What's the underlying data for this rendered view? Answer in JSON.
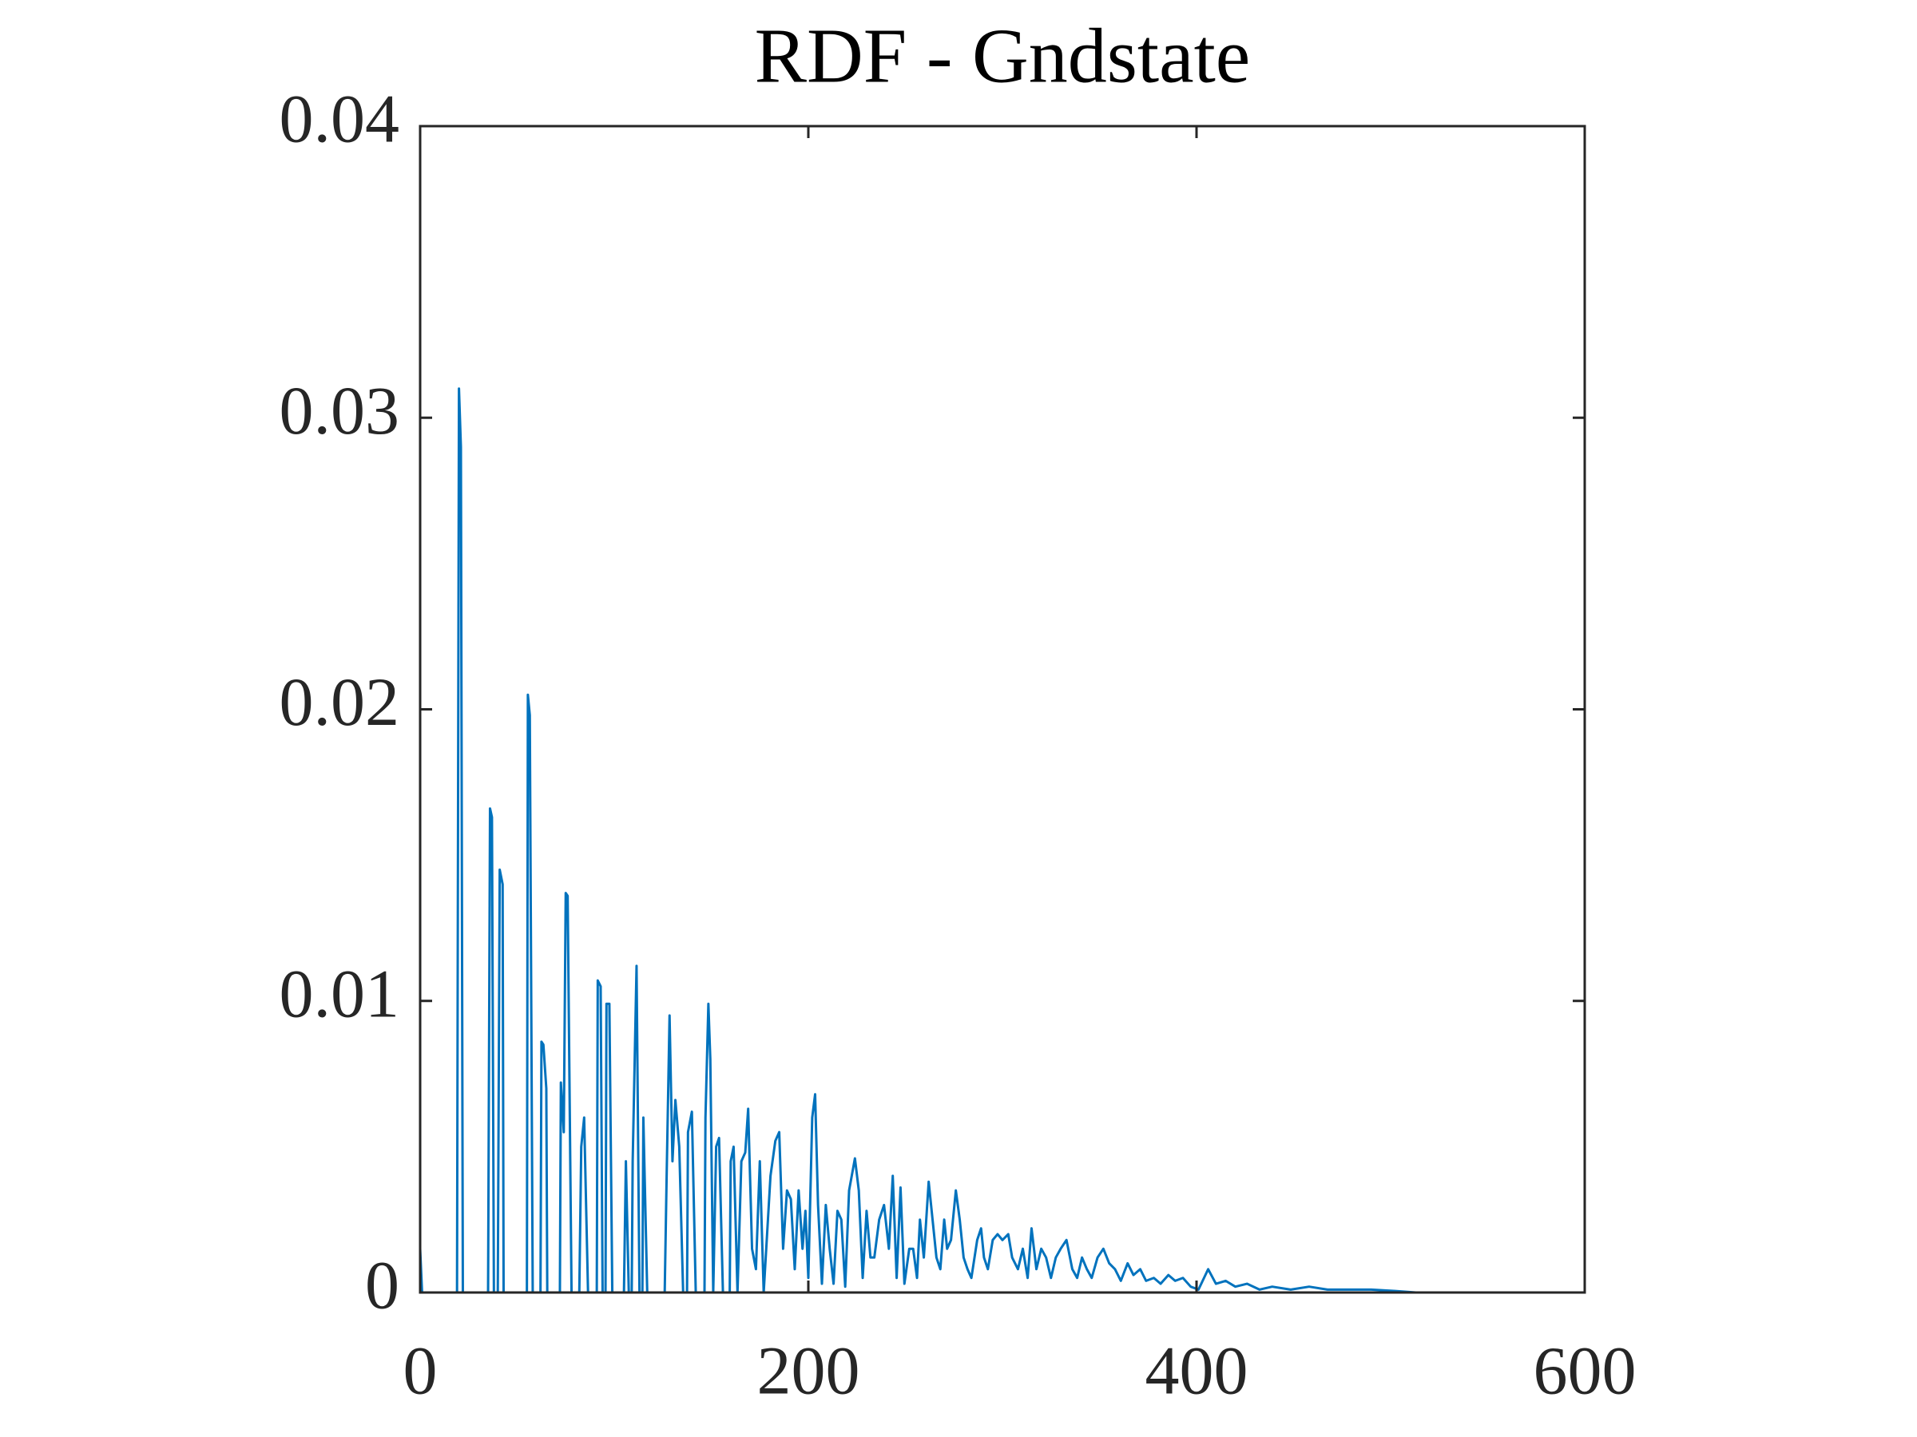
{
  "chart_data": {
    "type": "line",
    "title": "RDF - Gndstate",
    "x": [
      0,
      1,
      19,
      20,
      21,
      22,
      35,
      36,
      37,
      38,
      40,
      41,
      42.5,
      43,
      55,
      55.5,
      56.5,
      58,
      62,
      62.5,
      63.5,
      65,
      65.5,
      72,
      72.5,
      74,
      75,
      76,
      78,
      82,
      83,
      84.5,
      86.5,
      91,
      91.5,
      93,
      94,
      95.5,
      96,
      97.5,
      99,
      105,
      106,
      107.5,
      109,
      109.5,
      111.5,
      113,
      114.5,
      115,
      117,
      126,
      127,
      128.5,
      130,
      131.5,
      133.5,
      135.5,
      137.5,
      138,
      140,
      142,
      146.5,
      147,
      148.5,
      149.5,
      151,
      152.5,
      154,
      156,
      159.5,
      160,
      161.5,
      163.5,
      165.5,
      167.5,
      169,
      171,
      173,
      175,
      177,
      180.5,
      183,
      185,
      187,
      189,
      191,
      193,
      195,
      197,
      198.5,
      200,
      202,
      203.5,
      205,
      207,
      209,
      211,
      213,
      215,
      217,
      219,
      221,
      224,
      226,
      228,
      230,
      232,
      234,
      236.5,
      239,
      241.5,
      243.5,
      245.5,
      247.5,
      249.5,
      252,
      254,
      256,
      257.5,
      259.5,
      262,
      264,
      266,
      268,
      270,
      271.5,
      273.5,
      276,
      278,
      280,
      282,
      284,
      287,
      289,
      290.5,
      292.5,
      295,
      297.5,
      300,
      303,
      305,
      308,
      310.5,
      313,
      315,
      317.5,
      320,
      322.5,
      325,
      327.5,
      330,
      333,
      336,
      338.5,
      341,
      343.5,
      346,
      349,
      352,
      355,
      358,
      361,
      364.5,
      367.5,
      371,
      374,
      378,
      381.5,
      385.5,
      389,
      393,
      397,
      401,
      406,
      410,
      415,
      420,
      426,
      432.5,
      439,
      448.5,
      458,
      467.5,
      477,
      490,
      502.5,
      513
    ],
    "values": [
      0.0015,
      0,
      0,
      0.031,
      0.029,
      0,
      0,
      0.0166,
      0.0163,
      0,
      0,
      0.0145,
      0.014,
      0,
      0,
      0.0205,
      0.0198,
      0,
      0,
      0.0086,
      0.0085,
      0.007,
      0,
      0,
      0.0072,
      0.0055,
      0.0137,
      0.0136,
      0,
      0,
      0.005,
      0.006,
      0,
      0,
      0.0107,
      0.0105,
      0,
      0,
      0.0099,
      0.0099,
      0,
      0,
      0.0045,
      0,
      0,
      0.0045,
      0.0112,
      0,
      0,
      0.006,
      0,
      0,
      0.004,
      0.0095,
      0.0045,
      0.0066,
      0.005,
      0,
      0,
      0.0055,
      0.0062,
      0,
      0,
      0.006,
      0.0099,
      0.008,
      0,
      0.005,
      0.0053,
      0,
      0,
      0.0045,
      0.005,
      0,
      0.0045,
      0.0048,
      0.0063,
      0.0015,
      0.0008,
      0.0045,
      0,
      0.004,
      0.0052,
      0.0055,
      0.0015,
      0.0035,
      0.0032,
      0.0008,
      0.0035,
      0.0015,
      0.0028,
      0.0005,
      0.006,
      0.0068,
      0.003,
      0.0003,
      0.003,
      0.0015,
      0.0003,
      0.0028,
      0.0025,
      0.0002,
      0.0035,
      0.0046,
      0.0035,
      0.0005,
      0.0028,
      0.0012,
      0.0012,
      0.0025,
      0.003,
      0.0015,
      0.004,
      0.0005,
      0.0036,
      0.0003,
      0.0015,
      0.0015,
      0.0005,
      0.0025,
      0.0012,
      0.0038,
      0.0025,
      0.0012,
      0.0008,
      0.0025,
      0.0015,
      0.0018,
      0.0035,
      0.0025,
      0.0012,
      0.0008,
      0.0005,
      0.0018,
      0.0022,
      0.0012,
      0.0008,
      0.0018,
      0.002,
      0.0018,
      0.002,
      0.0012,
      0.0008,
      0.0015,
      0.0005,
      0.0022,
      0.0008,
      0.0015,
      0.0012,
      0.0005,
      0.0012,
      0.0015,
      0.0018,
      0.0008,
      0.0005,
      0.0012,
      0.0008,
      0.0005,
      0.0012,
      0.0015,
      0.001,
      0.0008,
      0.0004,
      0.001,
      0.0006,
      0.0008,
      0.0004,
      0.0005,
      0.0003,
      0.0006,
      0.0004,
      0.0005,
      0.0002,
      0.0001,
      0.0008,
      0.0003,
      0.0004,
      0.0002,
      0.0003,
      0.0001,
      0.0002,
      0.0001,
      0.0002,
      0.0001,
      0.0001,
      0.0001,
      5e-05,
      0
    ],
    "color": "#0072bd",
    "xlim": [
      0,
      600
    ],
    "xticks": [
      0,
      200,
      400,
      600
    ],
    "ylim": [
      0,
      0.04
    ],
    "yticks": [
      0,
      0.01,
      0.02,
      0.03,
      0.04
    ]
  }
}
